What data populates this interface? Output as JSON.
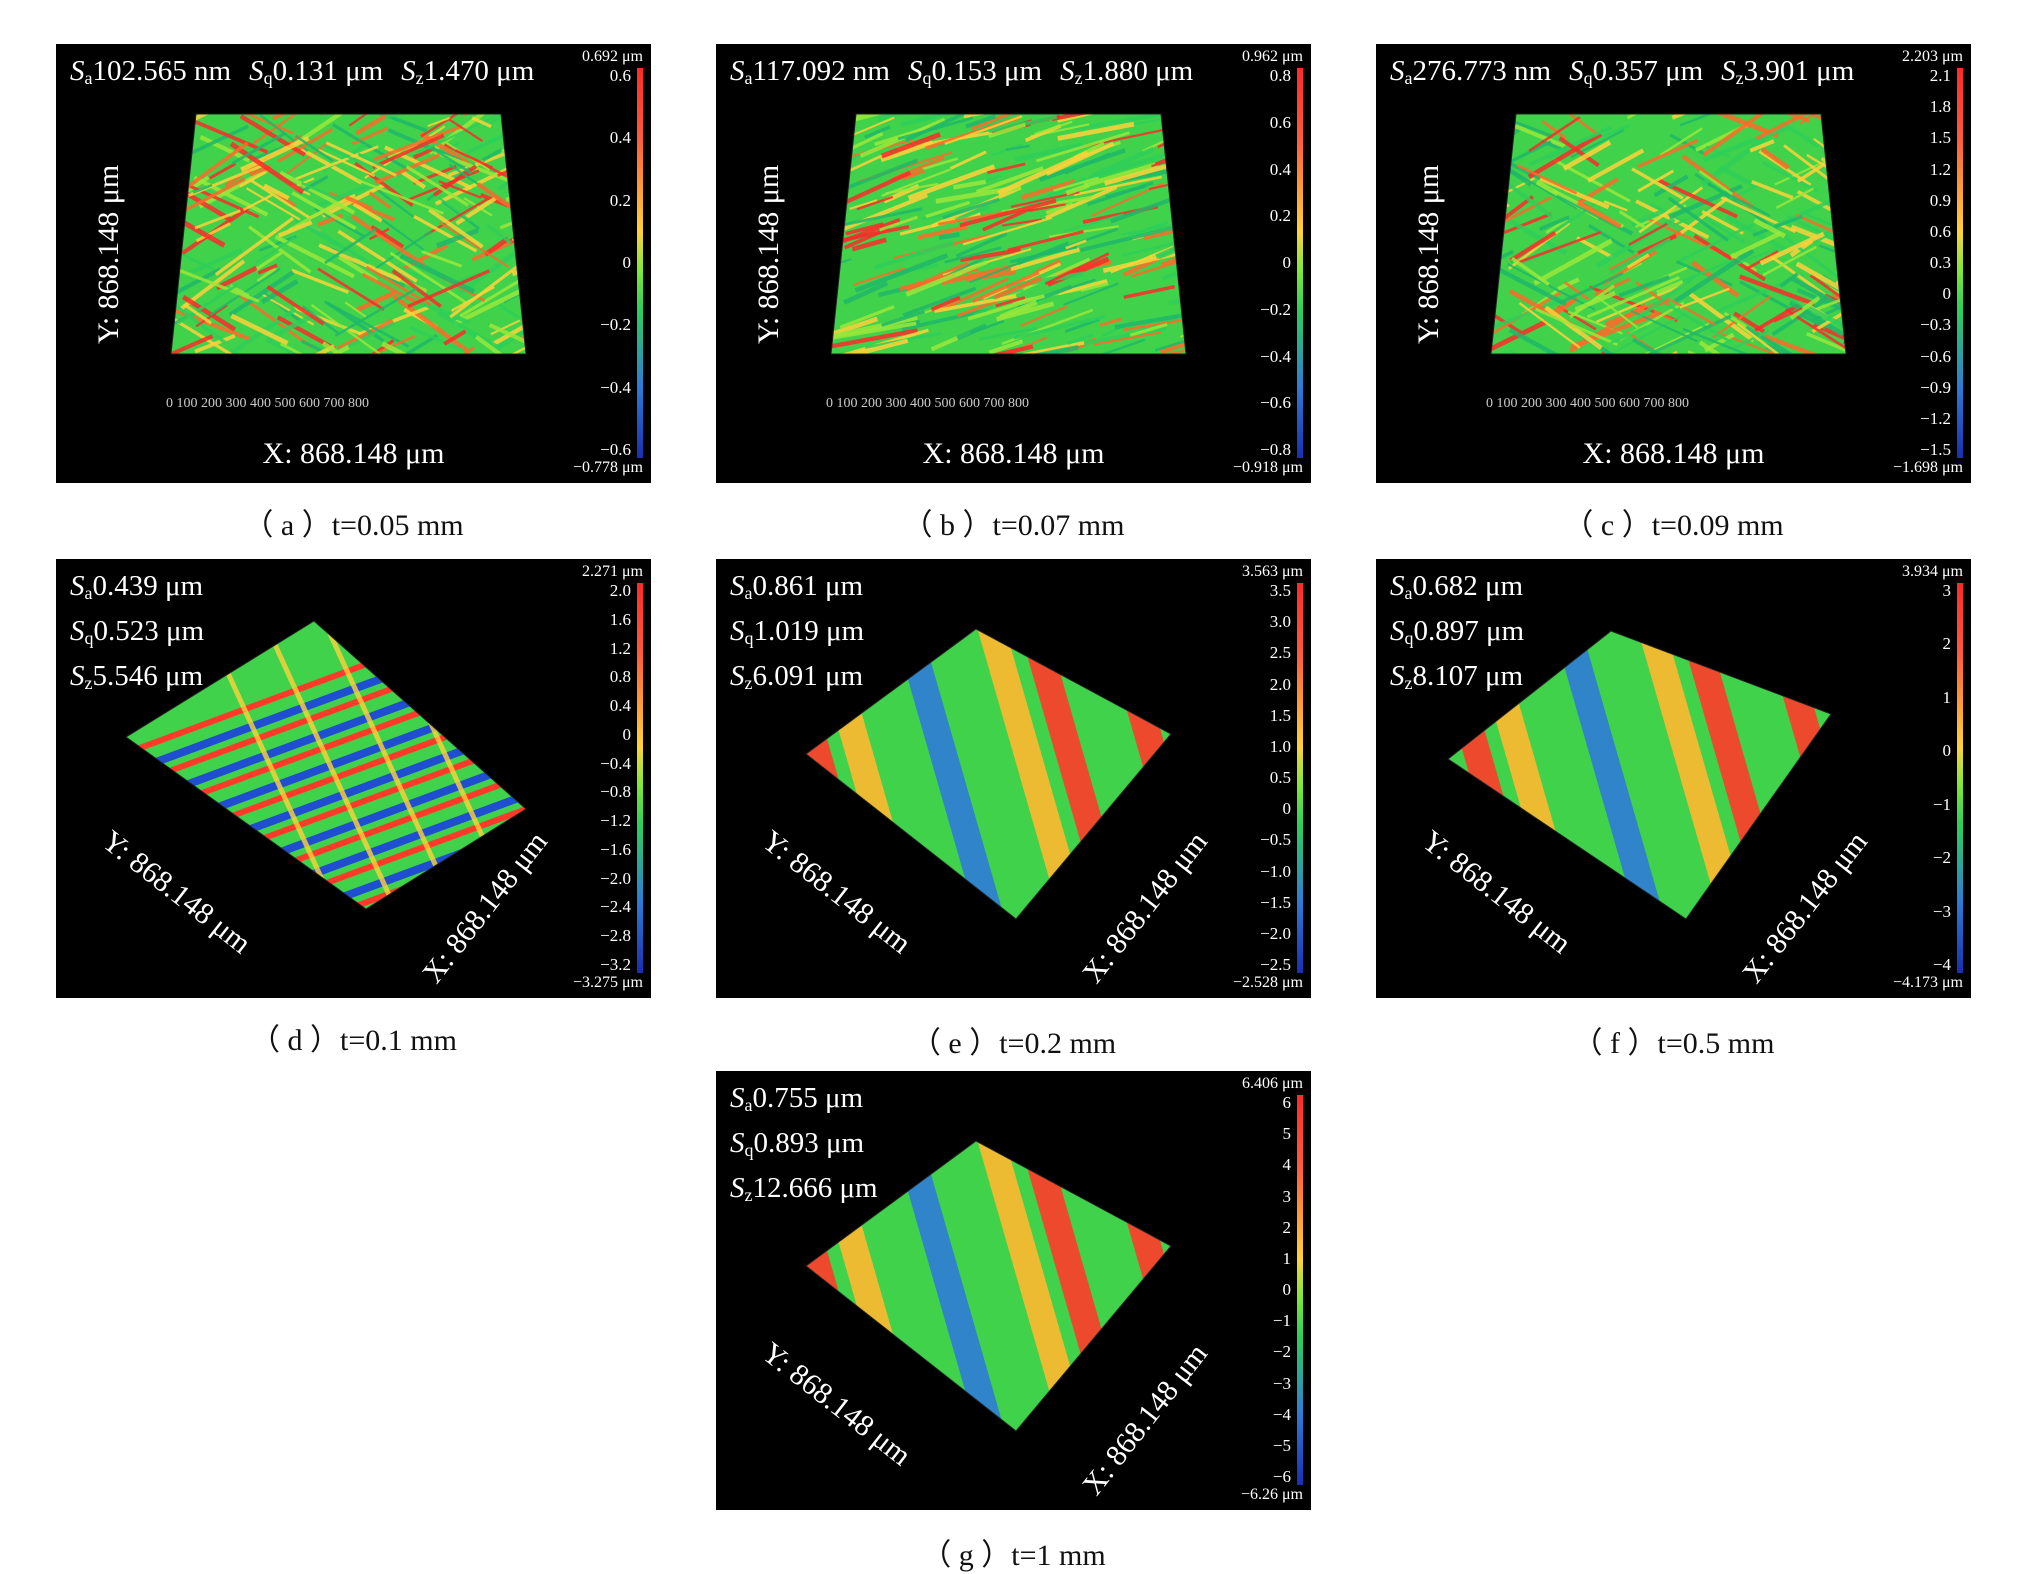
{
  "panels": [
    {
      "id": "a",
      "stats": [
        "Sa102.565 nm",
        "Sq0.131 μm",
        "Sz1.470 μm"
      ],
      "stats_parts": [
        [
          "S",
          "a",
          "102.565 nm"
        ],
        [
          "S",
          "q",
          "0.131 μm"
        ],
        [
          "S",
          "z",
          "1.470 μm"
        ]
      ],
      "cb_max": "0.692 μm",
      "cb_min": "−0.778 μm",
      "ticks": [
        "0.6",
        "0.4",
        "0.2",
        "0",
        "−0.2",
        "−0.4",
        "−0.6"
      ],
      "xlabel": "X: 868.148 μm",
      "ylabel": "Y: 868.148 μm",
      "xnums": "0   100  200  300  400  500  600  700  800",
      "caption": "（ a ）t=0.05 mm"
    },
    {
      "id": "b",
      "stats_parts": [
        [
          "S",
          "a",
          "117.092 nm"
        ],
        [
          "S",
          "q",
          "0.153 μm"
        ],
        [
          "S",
          "z",
          "1.880 μm"
        ]
      ],
      "cb_max": "0.962 μm",
      "cb_min": "−0.918 μm",
      "ticks": [
        "0.8",
        "0.6",
        "0.4",
        "0.2",
        "0",
        "−0.2",
        "−0.4",
        "−0.6",
        "−0.8"
      ],
      "xlabel": "X: 868.148 μm",
      "ylabel": "Y: 868.148 μm",
      "xnums": "0   100  200  300  400  500  600  700  800",
      "caption": "（ b ）t=0.07 mm"
    },
    {
      "id": "c",
      "stats_parts": [
        [
          "S",
          "a",
          "276.773 nm"
        ],
        [
          "S",
          "q",
          "0.357 μm"
        ],
        [
          "S",
          "z",
          "3.901 μm"
        ]
      ],
      "cb_max": "2.203 μm",
      "cb_min": "−1.698 μm",
      "ticks": [
        "2.1",
        "1.8",
        "1.5",
        "1.2",
        "0.9",
        "0.6",
        "0.3",
        "0",
        "−0.3",
        "−0.6",
        "−0.9",
        "−1.2",
        "−1.5"
      ],
      "xlabel": "X: 868.148 μm",
      "ylabel": "Y: 868.148 μm",
      "xnums": "0   100  200  300  400  500  600  700  800",
      "caption": "（ c ）t=0.09 mm"
    },
    {
      "id": "d",
      "stats_parts": [
        [
          "S",
          "a",
          "0.439 μm"
        ],
        [
          "S",
          "q",
          "0.523 μm"
        ],
        [
          "S",
          "z",
          "5.546 μm"
        ]
      ],
      "cb_max": "2.271 μm",
      "cb_min": "−3.275 μm",
      "ticks": [
        "2.0",
        "1.6",
        "1.2",
        "0.8",
        "0.4",
        "0",
        "−0.4",
        "−0.8",
        "−1.2",
        "−1.6",
        "−2.0",
        "−2.4",
        "−2.8",
        "−3.2"
      ],
      "xlabel": "X: 868.148 μm",
      "ylabel": "Y: 868.148 μm",
      "caption": "（ d ）t=0.1 mm"
    },
    {
      "id": "e",
      "stats_parts": [
        [
          "S",
          "a",
          "0.861 μm"
        ],
        [
          "S",
          "q",
          "1.019 μm"
        ],
        [
          "S",
          "z",
          "6.091 μm"
        ]
      ],
      "cb_max": "3.563 μm",
      "cb_min": "−2.528 μm",
      "ticks": [
        "3.5",
        "3.0",
        "2.5",
        "2.0",
        "1.5",
        "1.0",
        "0.5",
        "0",
        "−0.5",
        "−1.0",
        "−1.5",
        "−2.0",
        "−2.5"
      ],
      "xlabel": "X: 868.148 μm",
      "ylabel": "Y: 868.148 μm",
      "caption": "（ e ）t=0.2 mm"
    },
    {
      "id": "f",
      "stats_parts": [
        [
          "S",
          "a",
          "0.682 μm"
        ],
        [
          "S",
          "q",
          "0.897 μm"
        ],
        [
          "S",
          "z",
          "8.107 μm"
        ]
      ],
      "cb_max": "3.934 μm",
      "cb_min": "−4.173 μm",
      "ticks": [
        "3",
        "2",
        "1",
        "0",
        "−1",
        "−2",
        "−3",
        "−4"
      ],
      "xlabel": "X: 868.148 μm",
      "ylabel": "Y: 868.148 μm",
      "caption": "（ f ）t=0.5 mm"
    },
    {
      "id": "g",
      "stats_parts": [
        [
          "S",
          "a",
          "0.755 μm"
        ],
        [
          "S",
          "q",
          "0.893 μm"
        ],
        [
          "S",
          "z",
          "12.666 μm"
        ]
      ],
      "cb_max": "6.406 μm",
      "cb_min": "−6.26 μm",
      "ticks": [
        "6",
        "5",
        "4",
        "3",
        "2",
        "1",
        "0",
        "−1",
        "−2",
        "−3",
        "−4",
        "−5",
        "−6"
      ],
      "xlabel": "X: 868.148 μm",
      "ylabel": "Y: 868.148 μm",
      "caption": "（ g ）t=1 mm"
    }
  ],
  "colors": {
    "high": "#ff2a2a",
    "mid": "#ffd23a",
    "zero": "#2ecf5a",
    "low": "#1a2fb0",
    "panel_bg": "#000000"
  }
}
